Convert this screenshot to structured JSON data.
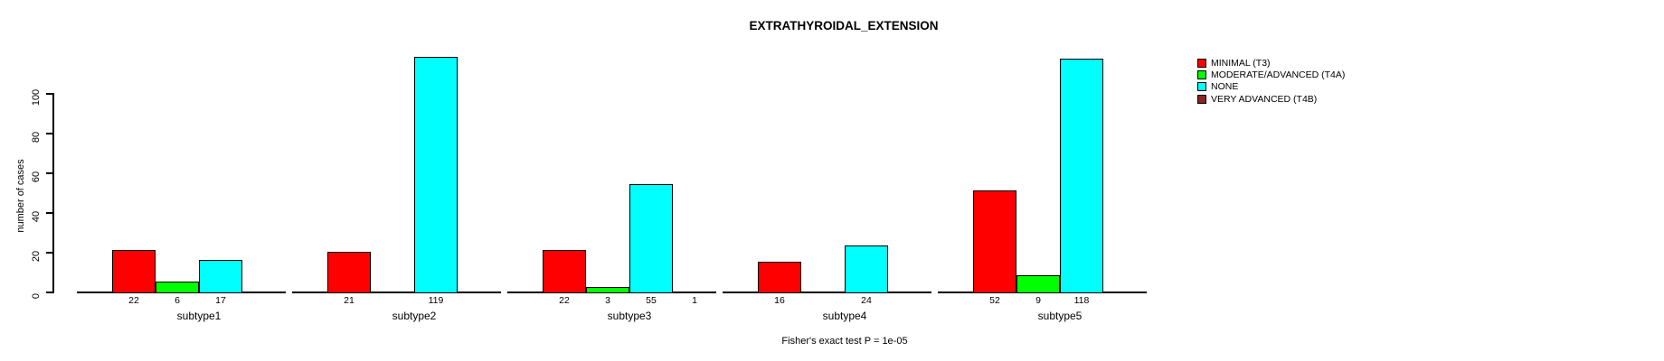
{
  "chart_data": {
    "type": "bar",
    "title": "EXTRATHYROIDAL_EXTENSION",
    "ylabel": "number of cases",
    "xlabel": "",
    "ylim": [
      0,
      120
    ],
    "yticks": [
      0,
      20,
      40,
      60,
      80,
      100
    ],
    "grid": false,
    "legend_position": "right",
    "bar_value_labels": true,
    "categories": [
      "subtype1",
      "subtype2",
      "subtype3",
      "subtype4",
      "subtype5"
    ],
    "series": [
      {
        "name": "MINIMAL (T3)",
        "color": "#ff0000",
        "values": [
          22,
          21,
          22,
          16,
          52
        ]
      },
      {
        "name": "MODERATE/ADVANCED (T4A)",
        "color": "#00ff00",
        "values": [
          6,
          null,
          3,
          null,
          9
        ]
      },
      {
        "name": "NONE",
        "color": "#00ffff",
        "values": [
          17,
          119,
          55,
          24,
          118
        ]
      },
      {
        "name": "VERY ADVANCED (T4B)",
        "color": "#8b2323",
        "values": [
          null,
          null,
          1,
          null,
          null
        ]
      }
    ],
    "annotation": "Fisher's exact test P = 1e-05"
  }
}
